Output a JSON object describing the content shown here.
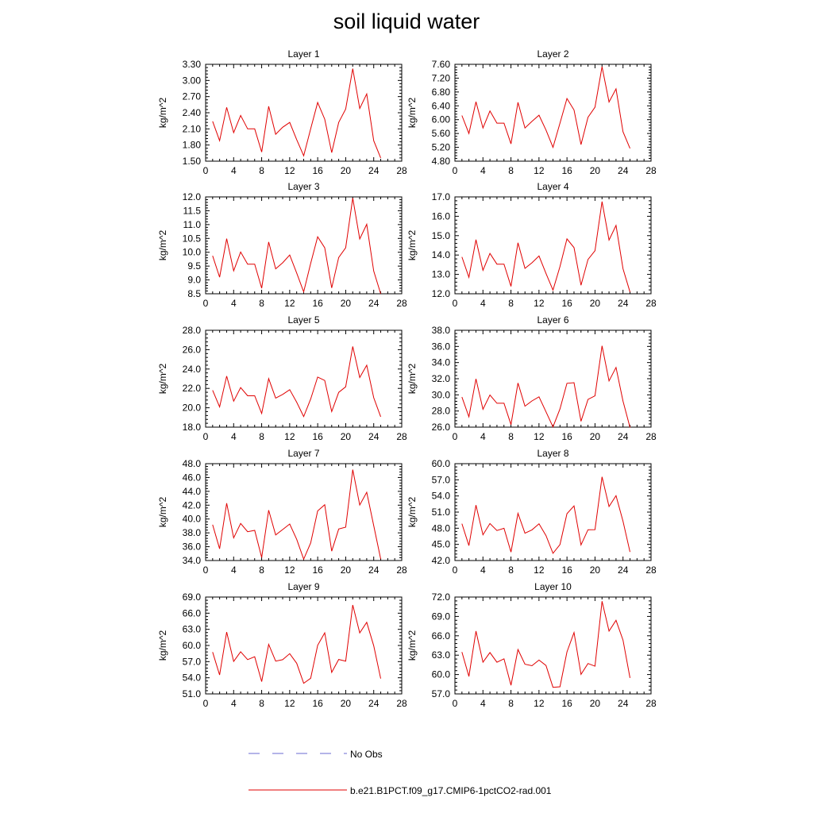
{
  "title": "soil liquid water",
  "legend": {
    "no_obs_label": "No Obs",
    "no_obs_color": "#6a6ad0",
    "model_label": "b.e21.B1PCT.f09_g17.CMIP6-1pctCO2-rad.001",
    "model_color": "#e00000"
  },
  "chart_data": [
    {
      "type": "line",
      "title": "Layer 1",
      "ylabel": "kg/m^2",
      "xlim": [
        0,
        28
      ],
      "xticks": [
        "0",
        "4",
        "8",
        "12",
        "16",
        "20",
        "24",
        "28"
      ],
      "ylim": [
        1.5,
        3.3
      ],
      "yticks": [
        "1.50",
        "1.80",
        "2.10",
        "2.40",
        "2.70",
        "3.00",
        "3.30"
      ],
      "x": [
        1,
        2,
        3,
        4,
        5,
        6,
        7,
        8,
        9,
        10,
        11,
        12,
        13,
        14,
        15,
        16,
        17,
        18,
        19,
        20,
        21,
        22,
        23,
        24,
        25
      ],
      "series": [
        {
          "values": [
            2.24,
            1.88,
            2.5,
            2.03,
            2.35,
            2.1,
            2.1,
            1.67,
            2.52,
            2.0,
            2.13,
            2.22,
            1.9,
            1.6,
            2.1,
            2.59,
            2.28,
            1.66,
            2.22,
            2.47,
            3.22,
            2.48,
            2.75,
            1.88,
            1.56
          ]
        }
      ]
    },
    {
      "type": "line",
      "title": "Layer 2",
      "ylabel": "kg/m^2",
      "xlim": [
        0,
        28
      ],
      "xticks": [
        "0",
        "4",
        "8",
        "12",
        "16",
        "20",
        "24",
        "28"
      ],
      "ylim": [
        4.8,
        7.6
      ],
      "yticks": [
        "4.80",
        "5.20",
        "5.60",
        "6.00",
        "6.40",
        "6.80",
        "7.20",
        "7.60"
      ],
      "x": [
        1,
        2,
        3,
        4,
        5,
        6,
        7,
        8,
        9,
        10,
        11,
        12,
        13,
        14,
        15,
        16,
        17,
        18,
        19,
        20,
        21,
        22,
        23,
        24,
        25
      ],
      "series": [
        {
          "values": [
            6.12,
            5.6,
            6.52,
            5.76,
            6.25,
            5.9,
            5.9,
            5.3,
            6.5,
            5.76,
            5.95,
            6.13,
            5.7,
            5.2,
            5.9,
            6.61,
            6.28,
            5.28,
            6.07,
            6.36,
            7.53,
            6.51,
            6.89,
            5.65,
            5.17
          ]
        }
      ]
    },
    {
      "type": "line",
      "title": "Layer 3",
      "ylabel": "kg/m^2",
      "xlim": [
        0,
        28
      ],
      "xticks": [
        "0",
        "4",
        "8",
        "12",
        "16",
        "20",
        "24",
        "28"
      ],
      "ylim": [
        8.5,
        12.0
      ],
      "yticks": [
        "8.5",
        "9.0",
        "9.5",
        "10.0",
        "10.5",
        "11.0",
        "11.5",
        "12.0"
      ],
      "x": [
        1,
        2,
        3,
        4,
        5,
        6,
        7,
        8,
        9,
        10,
        11,
        12,
        13,
        14,
        15,
        16,
        17,
        18,
        19,
        20,
        21,
        22,
        23,
        24,
        25
      ],
      "series": [
        {
          "values": [
            9.87,
            9.1,
            10.49,
            9.33,
            10.01,
            9.57,
            9.57,
            8.7,
            10.37,
            9.4,
            9.62,
            9.9,
            9.25,
            8.57,
            9.6,
            10.56,
            10.16,
            8.71,
            9.81,
            10.16,
            11.96,
            10.48,
            11.01,
            9.32,
            8.5
          ]
        }
      ]
    },
    {
      "type": "line",
      "title": "Layer 4",
      "ylabel": "kg/m^2",
      "xlim": [
        0,
        28
      ],
      "xticks": [
        "0",
        "4",
        "8",
        "12",
        "16",
        "20",
        "24",
        "28"
      ],
      "ylim": [
        12.0,
        17.0
      ],
      "yticks": [
        "12.0",
        "13.0",
        "14.0",
        "15.0",
        "16.0",
        "17.0"
      ],
      "x": [
        1,
        2,
        3,
        4,
        5,
        6,
        7,
        8,
        9,
        10,
        11,
        12,
        13,
        14,
        15,
        16,
        17,
        18,
        19,
        20,
        21,
        22,
        23,
        24,
        25
      ],
      "series": [
        {
          "values": [
            13.9,
            12.85,
            14.79,
            13.21,
            14.08,
            13.53,
            13.53,
            12.38,
            14.63,
            13.31,
            13.6,
            13.95,
            13.05,
            12.19,
            13.4,
            14.83,
            14.38,
            12.44,
            13.77,
            14.22,
            16.76,
            14.77,
            15.53,
            13.29,
            12.09
          ]
        }
      ]
    },
    {
      "type": "line",
      "title": "Layer 5",
      "ylabel": "kg/m^2",
      "xlim": [
        0,
        28
      ],
      "xticks": [
        "0",
        "4",
        "8",
        "12",
        "16",
        "20",
        "24",
        "28"
      ],
      "ylim": [
        18.0,
        28.0
      ],
      "yticks": [
        "18.0",
        "20.0",
        "22.0",
        "24.0",
        "26.0",
        "28.0"
      ],
      "x": [
        1,
        2,
        3,
        4,
        5,
        6,
        7,
        8,
        9,
        10,
        11,
        12,
        13,
        14,
        15,
        16,
        17,
        18,
        19,
        20,
        21,
        22,
        23,
        24,
        25
      ],
      "series": [
        {
          "values": [
            21.8,
            20.09,
            23.27,
            20.68,
            22.08,
            21.24,
            21.24,
            19.41,
            23.01,
            21.0,
            21.38,
            21.87,
            20.57,
            19.09,
            20.9,
            23.17,
            22.82,
            19.61,
            21.59,
            22.16,
            26.33,
            23.12,
            24.39,
            21.04,
            19.07
          ]
        }
      ]
    },
    {
      "type": "line",
      "title": "Layer 6",
      "ylabel": "kg/m^2",
      "xlim": [
        0,
        28
      ],
      "xticks": [
        "0",
        "4",
        "8",
        "12",
        "16",
        "20",
        "24",
        "28"
      ],
      "ylim": [
        26.0,
        38.0
      ],
      "yticks": [
        "26.0",
        "28.0",
        "30.0",
        "32.0",
        "34.0",
        "36.0",
        "38.0"
      ],
      "x": [
        1,
        2,
        3,
        4,
        5,
        6,
        7,
        8,
        9,
        10,
        11,
        12,
        13,
        14,
        15,
        16,
        17,
        18,
        19,
        20,
        21,
        22,
        23,
        24,
        25
      ],
      "series": [
        {
          "values": [
            29.73,
            27.28,
            31.98,
            28.21,
            29.98,
            28.96,
            28.96,
            26.31,
            31.47,
            28.6,
            29.25,
            29.76,
            27.9,
            26.03,
            28.25,
            31.43,
            31.51,
            26.73,
            29.43,
            29.88,
            36.07,
            31.72,
            33.4,
            29.23,
            25.96
          ]
        }
      ]
    },
    {
      "type": "line",
      "title": "Layer 7",
      "ylabel": "kg/m^2",
      "xlim": [
        0,
        28
      ],
      "xticks": [
        "0",
        "4",
        "8",
        "12",
        "16",
        "20",
        "24",
        "28"
      ],
      "ylim": [
        34.0,
        48.0
      ],
      "yticks": [
        "34.0",
        "36.0",
        "38.0",
        "40.0",
        "42.0",
        "44.0",
        "46.0",
        "48.0"
      ],
      "x": [
        1,
        2,
        3,
        4,
        5,
        6,
        7,
        8,
        9,
        10,
        11,
        12,
        13,
        14,
        15,
        16,
        17,
        18,
        19,
        20,
        21,
        22,
        23,
        24,
        25
      ],
      "series": [
        {
          "values": [
            39.17,
            35.7,
            42.28,
            37.27,
            39.36,
            38.17,
            38.36,
            34.44,
            41.28,
            37.7,
            38.48,
            39.28,
            37.06,
            34.19,
            36.55,
            41.17,
            42.07,
            35.35,
            38.56,
            38.82,
            47.14,
            42.02,
            43.87,
            39.05,
            34.22
          ]
        }
      ]
    },
    {
      "type": "line",
      "title": "Layer 8",
      "ylabel": "kg/m^2",
      "xlim": [
        0,
        28
      ],
      "xticks": [
        "0",
        "4",
        "8",
        "12",
        "16",
        "20",
        "24",
        "28"
      ],
      "ylim": [
        42.0,
        60.0
      ],
      "yticks": [
        "42.0",
        "45.0",
        "48.0",
        "51.0",
        "54.0",
        "57.0",
        "60.0"
      ],
      "x": [
        1,
        2,
        3,
        4,
        5,
        6,
        7,
        8,
        9,
        10,
        11,
        12,
        13,
        14,
        15,
        16,
        17,
        18,
        19,
        20,
        21,
        22,
        23,
        24,
        25
      ],
      "series": [
        {
          "values": [
            48.84,
            44.78,
            52.3,
            46.78,
            48.87,
            47.57,
            47.99,
            43.57,
            50.77,
            47.07,
            47.7,
            48.81,
            46.63,
            43.34,
            44.97,
            50.71,
            52.15,
            44.89,
            47.72,
            47.74,
            57.55,
            52.03,
            54.06,
            49.3,
            43.6
          ]
        }
      ]
    },
    {
      "type": "line",
      "title": "Layer 9",
      "ylabel": "kg/m^2",
      "xlim": [
        0,
        28
      ],
      "xticks": [
        "0",
        "4",
        "8",
        "12",
        "16",
        "20",
        "24",
        "28"
      ],
      "ylim": [
        51.0,
        69.0
      ],
      "yticks": [
        "51.0",
        "54.0",
        "57.0",
        "60.0",
        "63.0",
        "66.0",
        "69.0"
      ],
      "x": [
        1,
        2,
        3,
        4,
        5,
        6,
        7,
        8,
        9,
        10,
        11,
        12,
        13,
        14,
        15,
        16,
        17,
        18,
        19,
        20,
        21,
        22,
        23,
        24,
        25
      ],
      "series": [
        {
          "values": [
            58.77,
            54.52,
            62.5,
            57.03,
            58.84,
            57.38,
            57.9,
            53.29,
            60.21,
            57.1,
            57.36,
            58.48,
            56.7,
            52.97,
            53.9,
            60.03,
            62.35,
            55.0,
            57.41,
            57.1,
            67.53,
            62.35,
            64.31,
            59.96,
            53.85
          ]
        }
      ]
    },
    {
      "type": "line",
      "title": "Layer 10",
      "ylabel": "kg/m^2",
      "xlim": [
        0,
        28
      ],
      "xticks": [
        "0",
        "4",
        "8",
        "12",
        "16",
        "20",
        "24",
        "28"
      ],
      "ylim": [
        57.0,
        72.0
      ],
      "yticks": [
        "57.0",
        "60.0",
        "63.0",
        "66.0",
        "69.0",
        "72.0"
      ],
      "x": [
        1,
        2,
        3,
        4,
        5,
        6,
        7,
        8,
        9,
        10,
        11,
        12,
        13,
        14,
        15,
        16,
        17,
        18,
        19,
        20,
        21,
        22,
        23,
        24,
        25
      ],
      "series": [
        {
          "values": [
            63.49,
            59.7,
            66.73,
            61.9,
            63.4,
            61.9,
            62.43,
            58.34,
            63.87,
            61.6,
            61.36,
            62.24,
            61.4,
            58.02,
            58.11,
            63.5,
            66.5,
            60.03,
            61.71,
            61.29,
            71.35,
            66.73,
            68.4,
            65.34,
            59.47
          ]
        }
      ]
    }
  ]
}
